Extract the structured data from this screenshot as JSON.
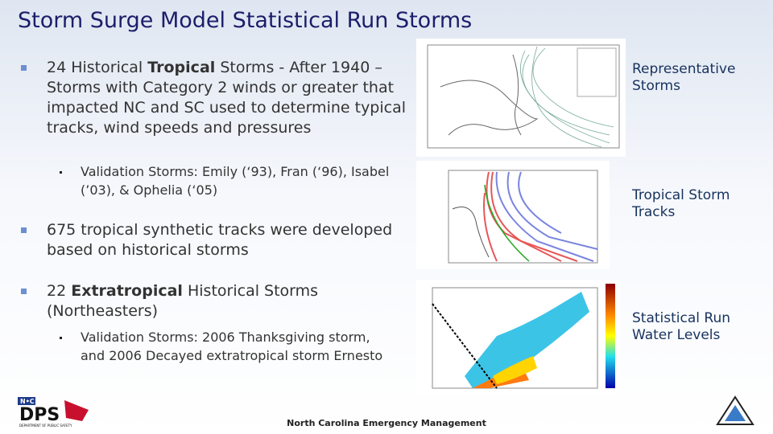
{
  "slide": {
    "title": "Storm Surge Model Statistical Run Storms",
    "bullets": [
      {
        "runs": [
          "24 Historical ",
          "Tropical",
          " Storms - After 1940 – Storms with Category 2 winds or greater that impacted NC and SC used to determine typical tracks, wind speeds and pressures"
        ],
        "sub": "Validation Storms:  Emily (‘93), Fran (‘96), Isabel (’03), & Ophelia (‘05)"
      },
      {
        "runs": [
          "675 tropical synthetic tracks were developed based on historical storms"
        ]
      },
      {
        "runs": [
          "22 ",
          "Extratropical",
          " Historical Storms (Northeasters)"
        ],
        "sub": "Validation Storms:  2006 Thanksgiving storm, and 2006 Decayed extratropical storm Ernesto"
      }
    ],
    "images": [
      {
        "caption": "Representative Storms"
      },
      {
        "caption": "Tropical Storm Tracks"
      },
      {
        "caption": "Statistical Run Water Levels"
      }
    ],
    "footer": {
      "organization": "North Carolina Emergency Management",
      "logo_left": {
        "badge": "N•C",
        "name": "DPS",
        "tagline": "DEPARTMENT OF PUBLIC SAFETY"
      }
    }
  }
}
